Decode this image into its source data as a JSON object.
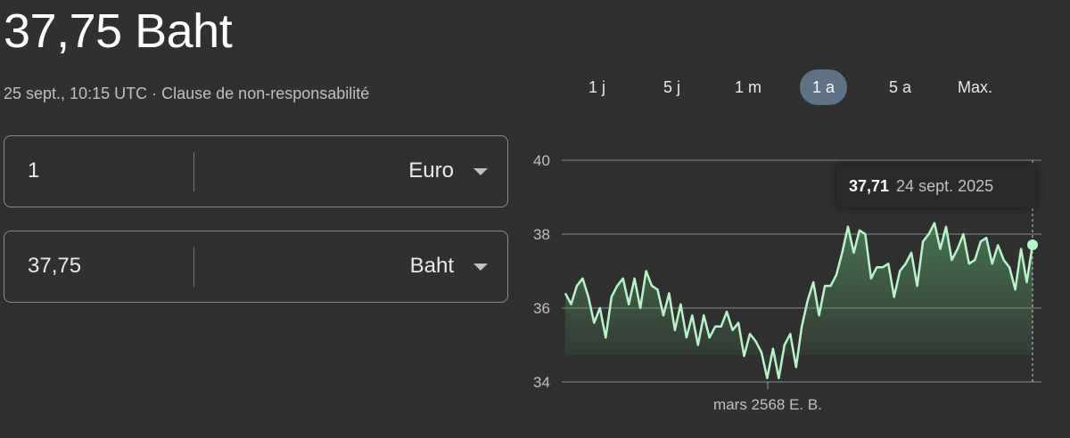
{
  "header": {
    "title": "37,75 Baht",
    "timestamp": "25 sept., 10:15 UTC",
    "separator": "·",
    "disclaimer": "Clause de non-responsabilité"
  },
  "converter": {
    "from": {
      "amount": "1",
      "currency": "Euro"
    },
    "to": {
      "amount": "37,75",
      "currency": "Baht"
    }
  },
  "ranges": [
    {
      "label": "1 j"
    },
    {
      "label": "5 j"
    },
    {
      "label": "1 m"
    },
    {
      "label": "1 a",
      "active": true
    },
    {
      "label": "5 a"
    },
    {
      "label": "Max."
    }
  ],
  "tooltip": {
    "value": "37,71",
    "date": "24 sept. 2025"
  },
  "colors": {
    "line": "#b7f5c9",
    "fill": "#4e8a5c",
    "active_range": "#5f7286"
  },
  "chart_data": {
    "type": "area",
    "ylim": [
      34,
      40
    ],
    "yticks": [
      "40",
      "38",
      "36",
      "34"
    ],
    "xticks": [
      "mars 2568 E. B."
    ],
    "grid": true,
    "values": [
      36.4,
      36.1,
      36.6,
      36.8,
      36.3,
      35.6,
      36.0,
      35.2,
      36.3,
      36.6,
      36.8,
      36.1,
      36.8,
      36.0,
      37.0,
      36.6,
      36.5,
      35.8,
      36.4,
      35.4,
      36.1,
      35.2,
      35.8,
      35.0,
      35.8,
      35.2,
      35.5,
      35.5,
      35.9,
      35.4,
      35.6,
      34.7,
      35.3,
      35.1,
      34.8,
      34.1,
      34.9,
      34.1,
      35.0,
      35.3,
      34.4,
      35.5,
      36.2,
      36.7,
      35.8,
      36.6,
      36.6,
      36.9,
      37.5,
      38.2,
      37.5,
      38.1,
      38.0,
      36.8,
      37.1,
      37.1,
      37.2,
      36.3,
      37.0,
      37.2,
      37.5,
      36.6,
      37.8,
      38.0,
      38.3,
      37.6,
      38.2,
      37.3,
      37.6,
      38.0,
      37.2,
      37.3,
      37.8,
      37.9,
      37.2,
      37.7,
      37.3,
      37.1,
      36.5,
      37.6,
      36.7,
      37.71
    ]
  }
}
